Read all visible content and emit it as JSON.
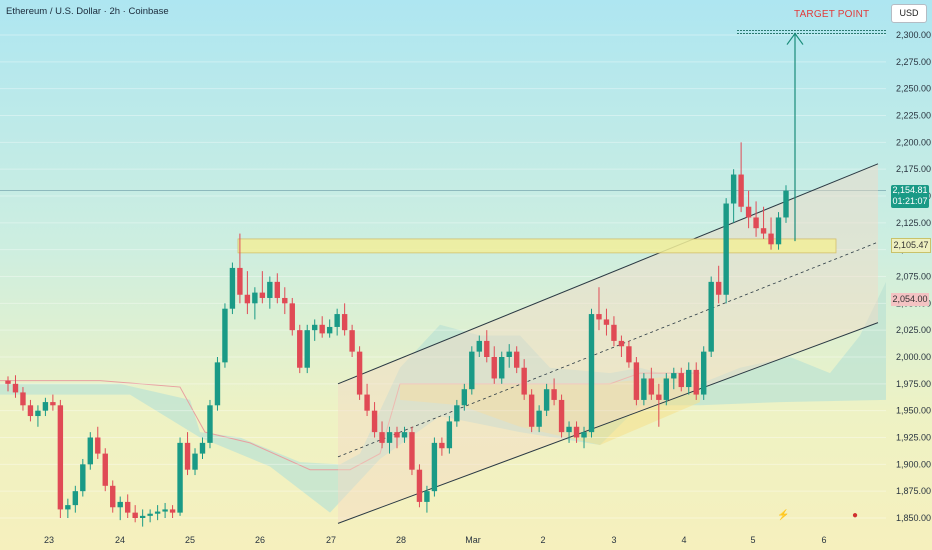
{
  "header": {
    "title": "Ethereum / U.S. Dollar · 2h · Coinbase"
  },
  "currency_button": "USD",
  "annotations": {
    "target_label": "TARGET POINT"
  },
  "price_tags": {
    "current_price": "2,154.81",
    "countdown": "01:21:07",
    "level_price": "2,105.47",
    "red_price": "2,054.00"
  },
  "icons": [
    "lightning-icon",
    "us-flag-icon"
  ],
  "colors": {
    "up": "#1a9a86",
    "down": "#e04a55",
    "channel": "#2b3a44",
    "target_arrow": "#1a8c7a",
    "target_text": "#e23a3a"
  },
  "chart_data": {
    "type": "candlestick",
    "y_axis": {
      "ticks": [
        2300,
        2275,
        2250,
        2225,
        2200,
        2175,
        2150,
        2125,
        2100,
        2075,
        2050,
        2025,
        2000,
        1975,
        1950,
        1925,
        1900,
        1875,
        1850
      ],
      "tick_labels": [
        "2,300.00",
        "2,275.00",
        "2,250.00",
        "2,225.00",
        "2,200.00",
        "2,175.00",
        "2,150.00",
        "2,125.00",
        "2,100.00",
        "2,075.00",
        "2,050.00",
        "2,025.00",
        "2,000.00",
        "1,975.00",
        "1,950.00",
        "1,925.00",
        "1,900.00",
        "1,875.00",
        "1,850.00"
      ],
      "range": [
        1843,
        2310
      ]
    },
    "x_axis": {
      "labels": [
        "23",
        "24",
        "25",
        "26",
        "27",
        "28",
        "Mar",
        "2",
        "3",
        "4",
        "5",
        "6"
      ]
    },
    "candles_ohlc": [
      [
        1978,
        1982,
        1968,
        1975
      ],
      [
        1975,
        1983,
        1962,
        1967
      ],
      [
        1967,
        1972,
        1950,
        1955
      ],
      [
        1955,
        1960,
        1940,
        1945
      ],
      [
        1945,
        1955,
        1935,
        1950
      ],
      [
        1950,
        1962,
        1945,
        1958
      ],
      [
        1958,
        1965,
        1950,
        1955
      ],
      [
        1955,
        1960,
        1850,
        1858
      ],
      [
        1858,
        1868,
        1850,
        1862
      ],
      [
        1862,
        1880,
        1855,
        1875
      ],
      [
        1875,
        1905,
        1870,
        1900
      ],
      [
        1900,
        1930,
        1895,
        1925
      ],
      [
        1925,
        1935,
        1905,
        1910
      ],
      [
        1910,
        1915,
        1875,
        1880
      ],
      [
        1880,
        1885,
        1855,
        1860
      ],
      [
        1860,
        1870,
        1848,
        1865
      ],
      [
        1865,
        1872,
        1850,
        1855
      ],
      [
        1855,
        1862,
        1846,
        1850
      ],
      [
        1850,
        1858,
        1842,
        1852
      ],
      [
        1852,
        1858,
        1846,
        1854
      ],
      [
        1854,
        1862,
        1848,
        1856
      ],
      [
        1856,
        1864,
        1850,
        1858
      ],
      [
        1858,
        1862,
        1850,
        1855
      ],
      [
        1855,
        1925,
        1852,
        1920
      ],
      [
        1920,
        1930,
        1890,
        1895
      ],
      [
        1895,
        1915,
        1890,
        1910
      ],
      [
        1910,
        1925,
        1905,
        1920
      ],
      [
        1920,
        1960,
        1915,
        1955
      ],
      [
        1955,
        2000,
        1950,
        1995
      ],
      [
        1995,
        2050,
        1990,
        2045
      ],
      [
        2045,
        2088,
        2040,
        2083
      ],
      [
        2083,
        2115,
        2050,
        2058
      ],
      [
        2058,
        2080,
        2040,
        2050
      ],
      [
        2050,
        2065,
        2035,
        2060
      ],
      [
        2060,
        2080,
        2050,
        2055
      ],
      [
        2055,
        2075,
        2045,
        2070
      ],
      [
        2070,
        2078,
        2050,
        2055
      ],
      [
        2055,
        2065,
        2040,
        2050
      ],
      [
        2050,
        2055,
        2020,
        2025
      ],
      [
        2025,
        2030,
        1985,
        1990
      ],
      [
        1990,
        2030,
        1985,
        2025
      ],
      [
        2025,
        2035,
        2015,
        2030
      ],
      [
        2030,
        2038,
        2018,
        2022
      ],
      [
        2022,
        2035,
        2018,
        2028
      ],
      [
        2028,
        2045,
        2020,
        2040
      ],
      [
        2040,
        2050,
        2020,
        2025
      ],
      [
        2025,
        2030,
        2000,
        2005
      ],
      [
        2005,
        2010,
        1960,
        1965
      ],
      [
        1965,
        1975,
        1945,
        1950
      ],
      [
        1950,
        1958,
        1925,
        1930
      ],
      [
        1930,
        1940,
        1915,
        1920
      ],
      [
        1920,
        1935,
        1910,
        1930
      ],
      [
        1930,
        1935,
        1915,
        1925
      ],
      [
        1925,
        1935,
        1920,
        1930
      ],
      [
        1930,
        1935,
        1890,
        1895
      ],
      [
        1895,
        1900,
        1860,
        1865
      ],
      [
        1865,
        1880,
        1855,
        1875
      ],
      [
        1875,
        1925,
        1870,
        1920
      ],
      [
        1920,
        1925,
        1908,
        1915
      ],
      [
        1915,
        1945,
        1910,
        1940
      ],
      [
        1940,
        1960,
        1935,
        1955
      ],
      [
        1955,
        1975,
        1950,
        1970
      ],
      [
        1970,
        2010,
        1965,
        2005
      ],
      [
        2005,
        2020,
        2000,
        2015
      ],
      [
        2015,
        2025,
        1995,
        2000
      ],
      [
        2000,
        2010,
        1975,
        1980
      ],
      [
        1980,
        2005,
        1975,
        2000
      ],
      [
        2000,
        2012,
        1990,
        2005
      ],
      [
        2005,
        2010,
        1985,
        1990
      ],
      [
        1990,
        1998,
        1960,
        1965
      ],
      [
        1965,
        1970,
        1930,
        1935
      ],
      [
        1935,
        1955,
        1930,
        1950
      ],
      [
        1950,
        1975,
        1945,
        1970
      ],
      [
        1970,
        1980,
        1955,
        1960
      ],
      [
        1960,
        1965,
        1925,
        1930
      ],
      [
        1930,
        1940,
        1920,
        1935
      ],
      [
        1935,
        1940,
        1920,
        1925
      ],
      [
        1925,
        1935,
        1915,
        1930
      ],
      [
        1930,
        2045,
        1925,
        2040
      ],
      [
        2040,
        2065,
        2025,
        2035
      ],
      [
        2035,
        2045,
        2020,
        2030
      ],
      [
        2030,
        2038,
        2010,
        2015
      ],
      [
        2015,
        2020,
        2000,
        2010
      ],
      [
        2010,
        2015,
        1990,
        1995
      ],
      [
        1995,
        2000,
        1955,
        1960
      ],
      [
        1960,
        1985,
        1955,
        1980
      ],
      [
        1980,
        1990,
        1960,
        1965
      ],
      [
        1965,
        1975,
        1935,
        1960
      ],
      [
        1960,
        1985,
        1955,
        1980
      ],
      [
        1980,
        1990,
        1970,
        1985
      ],
      [
        1985,
        1990,
        1968,
        1972
      ],
      [
        1972,
        1995,
        1965,
        1988
      ],
      [
        1988,
        1995,
        1960,
        1965
      ],
      [
        1965,
        2010,
        1960,
        2005
      ],
      [
        2005,
        2075,
        2000,
        2070
      ],
      [
        2070,
        2085,
        2050,
        2058
      ],
      [
        2058,
        2148,
        2050,
        2143
      ],
      [
        2143,
        2175,
        2125,
        2170
      ],
      [
        2170,
        2200,
        2135,
        2140
      ],
      [
        2140,
        2155,
        2120,
        2130
      ],
      [
        2130,
        2145,
        2112,
        2120
      ],
      [
        2120,
        2140,
        2110,
        2115
      ],
      [
        2115,
        2130,
        2100,
        2105
      ],
      [
        2105,
        2135,
        2100,
        2130
      ],
      [
        2130,
        2160,
        2125,
        2155
      ]
    ],
    "rectangle_zone": {
      "from": 2097,
      "to": 2110
    },
    "ascending_channel": {
      "upper": [
        1975,
        2180
      ],
      "middle": [
        1907,
        2107
      ],
      "lower": [
        1845,
        2032
      ]
    },
    "target": 2306
  }
}
